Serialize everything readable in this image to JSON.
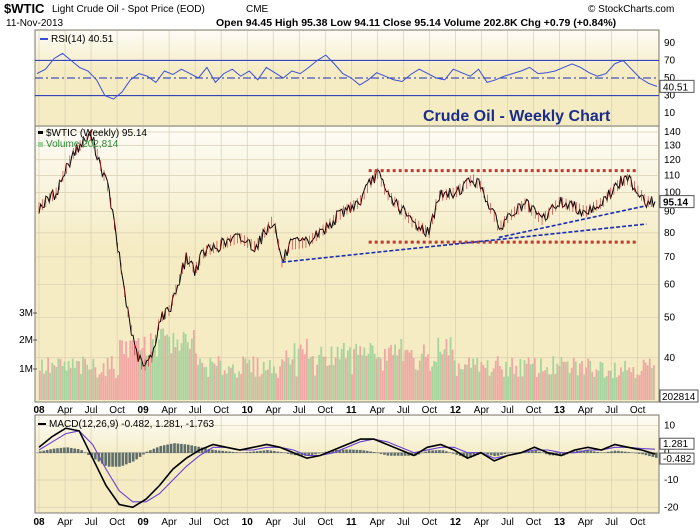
{
  "header": {
    "symbol": "$WTIC",
    "name": "Light Crude Oil - Spot Price (EOD)",
    "exchange": "CME",
    "date": "11-Nov-2013",
    "stats": "Open 94.45  High 95.38  Low 94.11  Close 95.14  Volume 202.8K  Chg +0.79 (+0.84%)",
    "watermark": "© StockCharts.com"
  },
  "chart_data": [
    {
      "type": "line",
      "panel": "rsi",
      "label": "RSI(14) 40.51",
      "ylim": [
        0,
        100
      ],
      "yticks": [
        "90",
        "70",
        "50",
        "30",
        "10"
      ],
      "reference_lines": [
        70,
        50,
        30
      ],
      "last_value": "40.51",
      "series": [
        {
          "values": [
            55,
            60,
            72,
            78,
            70,
            62,
            58,
            48,
            30,
            26,
            34,
            48,
            55,
            52,
            45,
            58,
            54,
            60,
            55,
            50,
            62,
            45,
            55,
            60,
            52,
            58,
            48,
            62,
            56,
            50,
            58,
            55,
            62,
            70,
            76,
            66,
            55,
            50,
            42,
            48,
            56,
            52,
            48,
            46,
            54,
            60,
            55,
            50,
            48,
            60,
            56,
            52,
            60,
            45,
            48,
            52,
            55,
            58,
            62,
            55,
            56,
            58,
            62,
            66,
            62,
            56,
            52,
            55,
            66,
            70,
            60,
            50,
            44,
            40.51
          ]
        }
      ]
    },
    {
      "type": "line",
      "panel": "price",
      "title": "Crude Oil - Weekly Chart",
      "label": "$WTIC (Weekly) 95.14",
      "volume_label": "Volume 202,814",
      "ylim": [
        32,
        140
      ],
      "log_scale": true,
      "yticks": [
        "140",
        "130",
        "120",
        "110",
        "100",
        "90",
        "80",
        "70",
        "60",
        "50",
        "40"
      ],
      "last_value": "95.14",
      "x": [
        "2008-01",
        "2008-03",
        "2008-05",
        "2008-07",
        "2008-08",
        "2008-09",
        "2008-10",
        "2008-11",
        "2008-12",
        "2009-01",
        "2009-02",
        "2009-03",
        "2009-04",
        "2009-05",
        "2009-06",
        "2009-07",
        "2009-08",
        "2009-10",
        "2009-12",
        "2010-02",
        "2010-04",
        "2010-05",
        "2010-06",
        "2010-08",
        "2010-10",
        "2010-12",
        "2011-02",
        "2011-03",
        "2011-04",
        "2011-05",
        "2011-06",
        "2011-08",
        "2011-10",
        "2011-11",
        "2012-01",
        "2012-03",
        "2012-04",
        "2012-06",
        "2012-07",
        "2012-09",
        "2012-11",
        "2013-01",
        "2013-03",
        "2013-04",
        "2013-06",
        "2013-08",
        "2013-09",
        "2013-10",
        "2013-11"
      ],
      "series": [
        {
          "values": [
            92,
            100,
            125,
            138,
            118,
            102,
            75,
            55,
            42,
            38,
            40,
            50,
            52,
            60,
            70,
            65,
            72,
            75,
            78,
            74,
            86,
            68,
            75,
            76,
            82,
            90,
            95,
            104,
            112,
            100,
            95,
            85,
            80,
            98,
            100,
            108,
            103,
            82,
            87,
            94,
            86,
            95,
            92,
            90,
            95,
            106,
            108,
            101,
            95.14
          ]
        }
      ],
      "trendlines": [
        {
          "style": "red-dotted",
          "from": [
            "2011-03",
            113
          ],
          "to": [
            "2013-10",
            113
          ]
        },
        {
          "style": "red-dotted",
          "from": [
            "2011-03",
            76
          ],
          "to": [
            "2013-10",
            76
          ]
        },
        {
          "style": "blue-dotted",
          "from": [
            "2010-05",
            68
          ],
          "to": [
            "2013-11",
            84
          ]
        },
        {
          "style": "blue-dotted",
          "from": [
            "2012-06",
            78
          ],
          "to": [
            "2013-11",
            93
          ]
        }
      ],
      "volume_ticks": [
        "3M",
        "2M",
        "1M"
      ],
      "volume_last": "202814"
    },
    {
      "type": "line",
      "panel": "macd",
      "label": "MACD(12,26,9) -0.482, 1.281, -1.763",
      "ylim": [
        -21,
        12
      ],
      "yticks": [
        "10",
        "0",
        "-10",
        "-20"
      ],
      "last_values": [
        "1.281",
        "-0.482"
      ],
      "series": [
        {
          "name": "MACD",
          "values": [
            2,
            6,
            9,
            8,
            -2,
            -12,
            -19,
            -20,
            -17,
            -12,
            -6,
            -2,
            1,
            3,
            2,
            1,
            2,
            3,
            2,
            0,
            -2,
            -1,
            1,
            3,
            5,
            5,
            3,
            1,
            -1,
            2,
            3,
            1,
            -2,
            0,
            -3,
            -1,
            0,
            2,
            0,
            -1,
            1,
            2,
            1,
            3,
            2,
            1,
            -0.482
          ]
        },
        {
          "name": "Signal",
          "values": [
            1,
            4,
            7,
            8,
            3,
            -6,
            -14,
            -18,
            -18,
            -15,
            -10,
            -5,
            -1,
            2,
            2,
            1,
            1,
            2,
            2,
            1,
            -1,
            -1,
            0,
            2,
            4,
            5,
            4,
            2,
            0,
            1,
            2,
            2,
            0,
            0,
            -2,
            -1,
            0,
            1,
            1,
            0,
            0,
            1,
            1,
            2,
            2,
            1.5,
            1.281
          ]
        }
      ],
      "histogram": [
        0.5,
        1.5,
        2,
        1.2,
        -2,
        -5,
        -5,
        -3,
        0.5,
        2.5,
        3.5,
        3,
        2,
        1,
        0.5,
        0,
        0.5,
        1,
        0.2,
        -0.8,
        -1,
        0,
        1,
        1.2,
        1,
        0.2,
        -1,
        -1,
        -1,
        0.8,
        1,
        -0.5,
        -2,
        0,
        -1.2,
        0,
        0,
        0.8,
        -0.8,
        -1,
        0.8,
        0.8,
        0,
        0.8,
        0.2,
        -0.5,
        -1.763
      ]
    }
  ],
  "xaxis": {
    "labels": [
      {
        "t": "08",
        "bold": true
      },
      {
        "t": "Apr"
      },
      {
        "t": "Jul"
      },
      {
        "t": "Oct"
      },
      {
        "t": "09",
        "bold": true
      },
      {
        "t": "Apr"
      },
      {
        "t": "Jul"
      },
      {
        "t": "Oct"
      },
      {
        "t": "10",
        "bold": true
      },
      {
        "t": "Apr"
      },
      {
        "t": "Jul"
      },
      {
        "t": "Oct"
      },
      {
        "t": "11",
        "bold": true
      },
      {
        "t": "Apr"
      },
      {
        "t": "Jul"
      },
      {
        "t": "Oct"
      },
      {
        "t": "12",
        "bold": true
      },
      {
        "t": "Apr"
      },
      {
        "t": "Jul"
      },
      {
        "t": "Oct"
      },
      {
        "t": "13",
        "bold": true
      },
      {
        "t": "Apr"
      },
      {
        "t": "Jul"
      },
      {
        "t": "Oct"
      }
    ]
  },
  "colors": {
    "panel_bg": "#f5ecc4",
    "price_line": "#000000",
    "rsi_line": "#3a4fd6",
    "macd_line": "#000000",
    "signal_line": "#6a3fd0",
    "hist": "#5f6e6a",
    "vol_up": "#9fd29a",
    "vol_down": "#f0a0a0",
    "red_dotted": "#c0392b",
    "blue_dotted": "#1a2db8",
    "tag": "#2b3fa8"
  }
}
